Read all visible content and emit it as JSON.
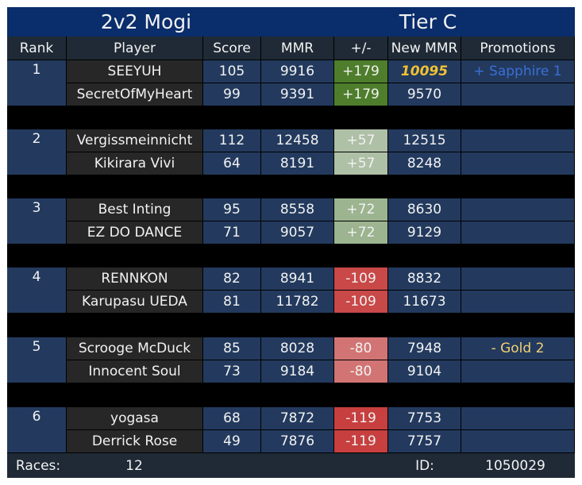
{
  "title": "2v2 Mogi",
  "tier": "Tier C",
  "headers": [
    "Rank",
    "Player",
    "Score",
    "MMR",
    "+/-",
    "New MMR",
    "Promotions"
  ],
  "colors": {
    "delta_big_gain": "#4e7e2c",
    "delta_small_gain": "#a8bda0",
    "delta_small_gain_alt": "#9cb48f",
    "delta_loss": "#c94545",
    "delta_small_loss": "#d27474",
    "promotion_sapphire": "#3a6fd6",
    "promotion_gold": "#f1cf73",
    "new_mmr_highlight": "#f1c232"
  },
  "teams": [
    {
      "rank": "1",
      "players": [
        {
          "name": "SEEYUH",
          "score": "105",
          "mmr": "9916",
          "delta": "+179",
          "new_mmr": "10095",
          "promotion": "+ Sapphire 1",
          "delta_color": "#4e7e2c",
          "new_mmr_color": "#f1c232",
          "promotion_color": "#3a6fd6"
        },
        {
          "name": "SecretOfMyHeart",
          "score": "99",
          "mmr": "9391",
          "delta": "+179",
          "new_mmr": "9570",
          "promotion": "",
          "delta_color": "#4e7e2c"
        }
      ]
    },
    {
      "rank": "2",
      "players": [
        {
          "name": "Vergissmeinnicht",
          "score": "112",
          "mmr": "12458",
          "delta": "+57",
          "new_mmr": "12515",
          "promotion": "",
          "delta_color": "#aec0a6"
        },
        {
          "name": "Kikirara Vivi",
          "score": "64",
          "mmr": "8191",
          "delta": "+57",
          "new_mmr": "8248",
          "promotion": "",
          "delta_color": "#aec0a6"
        }
      ]
    },
    {
      "rank": "3",
      "players": [
        {
          "name": "Best Inting",
          "score": "95",
          "mmr": "8558",
          "delta": "+72",
          "new_mmr": "8630",
          "promotion": "",
          "delta_color": "#9cb48f"
        },
        {
          "name": "EZ DO DANCE",
          "score": "71",
          "mmr": "9057",
          "delta": "+72",
          "new_mmr": "9129",
          "promotion": "",
          "delta_color": "#9cb48f"
        }
      ]
    },
    {
      "rank": "4",
      "players": [
        {
          "name": "RENNKON",
          "score": "82",
          "mmr": "8941",
          "delta": "-109",
          "new_mmr": "8832",
          "promotion": "",
          "delta_color": "#c94848"
        },
        {
          "name": "Karupasu UEDA",
          "score": "81",
          "mmr": "11782",
          "delta": "-109",
          "new_mmr": "11673",
          "promotion": "",
          "delta_color": "#c94848"
        }
      ]
    },
    {
      "rank": "5",
      "players": [
        {
          "name": "Scrooge McDuck",
          "score": "85",
          "mmr": "8028",
          "delta": "-80",
          "new_mmr": "7948",
          "promotion": "- Gold 2",
          "delta_color": "#d27474",
          "promotion_color": "#f1cf73"
        },
        {
          "name": "Innocent Soul",
          "score": "73",
          "mmr": "9184",
          "delta": "-80",
          "new_mmr": "9104",
          "promotion": "",
          "delta_color": "#d27474"
        }
      ]
    },
    {
      "rank": "6",
      "players": [
        {
          "name": "yogasa",
          "score": "68",
          "mmr": "7872",
          "delta": "-119",
          "new_mmr": "7753",
          "promotion": "",
          "delta_color": "#c73f3f"
        },
        {
          "name": "Derrick Rose",
          "score": "49",
          "mmr": "7876",
          "delta": "-119",
          "new_mmr": "7757",
          "promotion": "",
          "delta_color": "#c73f3f"
        }
      ]
    }
  ],
  "footer": {
    "races_label": "Races:",
    "races_value": "12",
    "id_label": "ID:",
    "id_value": "1050029"
  }
}
